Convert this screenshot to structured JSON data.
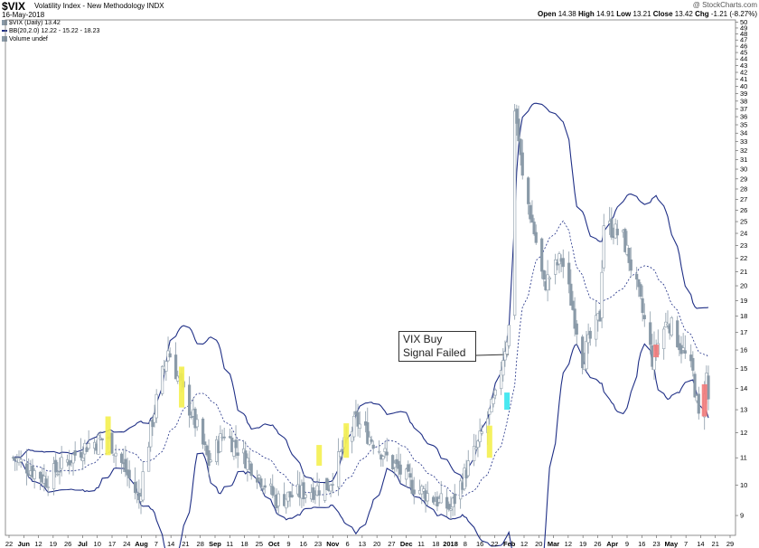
{
  "header": {
    "ticker": "$VIX",
    "description": "Volatility Index - New Methodology  INDX",
    "date": "16-May-2018",
    "watermark": "@ StockCharts.com",
    "open_label": "Open",
    "open": "14.38",
    "high_label": "High",
    "high": "14.91",
    "low_label": "Low",
    "low": "13.21",
    "close_label": "Close",
    "close": "13.42",
    "chg_label": "Chg",
    "chg": "-1.21 (-8.27%)"
  },
  "legend": {
    "vix": "$VIX (Daily) 13.42",
    "bb": "BB(20,2.0) 12.22 - 15.22 - 18.23",
    "volume": "Volume undef"
  },
  "annotation": "VIX Buy Signal Failed",
  "colors": {
    "candle": "#8a9aa8",
    "band": "#1f2f86",
    "highlight_yellow": "#f4ef4f",
    "highlight_cyan": "#35e6ee",
    "highlight_red": "#f27a7a"
  },
  "chart_data": {
    "type": "candlestick",
    "title": "$VIX",
    "ylim": [
      8.4,
      50.4
    ],
    "y_scale": "log",
    "y_ticks": [
      9,
      10,
      11,
      12,
      13,
      14,
      15,
      16,
      17,
      18,
      19,
      20,
      21,
      22,
      23,
      24,
      25,
      26,
      27,
      28,
      29,
      30,
      31,
      32,
      33,
      34,
      35,
      36,
      37,
      38,
      39,
      40,
      41,
      42,
      43,
      44,
      45,
      46,
      47,
      48,
      49,
      50
    ],
    "x_tick_labels": [
      "22",
      "Jun",
      "12",
      "19",
      "26",
      "Jul",
      "10",
      "17",
      "24",
      "Aug",
      "7",
      "14",
      "21",
      "28",
      "Sep",
      "11",
      "18",
      "25",
      "Oct",
      "9",
      "16",
      "23",
      "Nov",
      "6",
      "13",
      "20",
      "27",
      "Dec",
      "11",
      "18",
      "2018",
      "8",
      "16",
      "22",
      "Feb",
      "12",
      "20",
      "Mar",
      "12",
      "19",
      "26",
      "Apr",
      "9",
      "16",
      "23",
      "May",
      "7",
      "14",
      "21",
      "29"
    ],
    "x_tick_labels_bold": [
      "Jun",
      "Jul",
      "Aug",
      "Sep",
      "Oct",
      "Nov",
      "Dec",
      "2018",
      "Feb",
      "Mar",
      "Apr",
      "May"
    ],
    "sessions": 248,
    "key_points": [
      [
        "2017-05-22",
        11.0
      ],
      [
        "2017-06-08",
        10.2
      ],
      [
        "2017-06-29",
        11.5
      ],
      [
        "2017-07-10",
        11.8
      ],
      [
        "2017-07-26",
        9.5
      ],
      [
        "2017-08-10",
        16.0
      ],
      [
        "2017-08-17",
        14.0
      ],
      [
        "2017-08-31",
        10.8
      ],
      [
        "2017-09-08",
        12.0
      ],
      [
        "2017-10-05",
        9.5
      ],
      [
        "2017-11-01",
        10.0
      ],
      [
        "2017-11-15",
        12.5
      ],
      [
        "2017-12-01",
        11.0
      ],
      [
        "2017-12-14",
        10.0
      ],
      [
        "2018-01-03",
        9.2
      ],
      [
        "2018-01-17",
        11.5
      ],
      [
        "2018-01-26",
        13.5
      ],
      [
        "2018-02-02",
        17.3
      ],
      [
        "2018-02-05",
        37.3
      ],
      [
        "2018-02-09",
        29.0
      ],
      [
        "2018-02-20",
        20.0
      ],
      [
        "2018-03-01",
        22.0
      ],
      [
        "2018-03-12",
        15.5
      ],
      [
        "2018-03-21",
        18.0
      ],
      [
        "2018-03-23",
        24.9
      ],
      [
        "2018-04-02",
        23.6
      ],
      [
        "2018-04-17",
        15.5
      ],
      [
        "2018-04-25",
        17.8
      ],
      [
        "2018-05-08",
        14.7
      ],
      [
        "2018-05-11",
        12.6
      ],
      [
        "2018-05-15",
        14.6
      ],
      [
        "2018-05-16",
        13.42
      ]
    ],
    "highlights": [
      {
        "date": "2017-07-10",
        "color": "yellow",
        "low": 11.1,
        "high": 12.7
      },
      {
        "date": "2017-08-17",
        "color": "yellow",
        "low": 13.1,
        "high": 15.1
      },
      {
        "date": "2017-10-27",
        "color": "yellow",
        "low": 10.7,
        "high": 11.5
      },
      {
        "date": "2017-11-10",
        "color": "yellow",
        "low": 11.0,
        "high": 12.4
      },
      {
        "date": "2018-01-23",
        "color": "yellow",
        "low": 11.0,
        "high": 12.3
      },
      {
        "date": "2018-02-01",
        "color": "cyan",
        "low": 13.0,
        "high": 13.8
      },
      {
        "date": "2018-04-19",
        "color": "red",
        "low": 15.6,
        "high": 16.3
      },
      {
        "date": "2018-05-14",
        "color": "red",
        "low": 12.7,
        "high": 14.2
      }
    ]
  }
}
